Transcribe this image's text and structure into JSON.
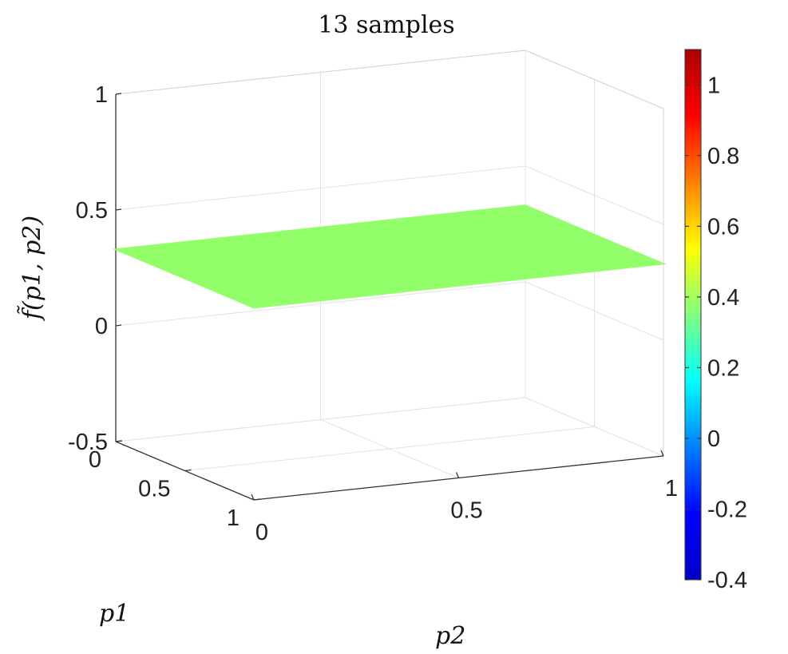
{
  "chart_data": {
    "type": "surface",
    "title": "13 samples",
    "xlabel": "p1",
    "ylabel": "p2",
    "zlabel": "f̃(p1, p2)",
    "xlim": [
      0,
      1
    ],
    "ylim": [
      0,
      1
    ],
    "zlim": [
      -0.5,
      1
    ],
    "x_ticks": [
      "0",
      "0.5",
      "1"
    ],
    "y_ticks": [
      "0",
      "0.5",
      "1"
    ],
    "z_ticks": [
      "-0.5",
      "0",
      "0.5",
      "1"
    ],
    "surface": {
      "corners": [
        {
          "p1": 0,
          "p2": 0,
          "value": 0.33
        },
        {
          "p1": 0,
          "p2": 1,
          "value": 0.33
        },
        {
          "p1": 1,
          "p2": 0,
          "value": 0.33
        },
        {
          "p1": 1,
          "p2": 1,
          "value": 0.33
        }
      ],
      "color": "#91fe6a"
    },
    "colorbar": {
      "limits": [
        -0.4,
        1.1
      ],
      "ticks": [
        "1",
        "0.8",
        "0.6",
        "0.4",
        "0.2",
        "0",
        "-0.2",
        "-0.4"
      ],
      "colormap": "jet"
    },
    "grid": true
  }
}
